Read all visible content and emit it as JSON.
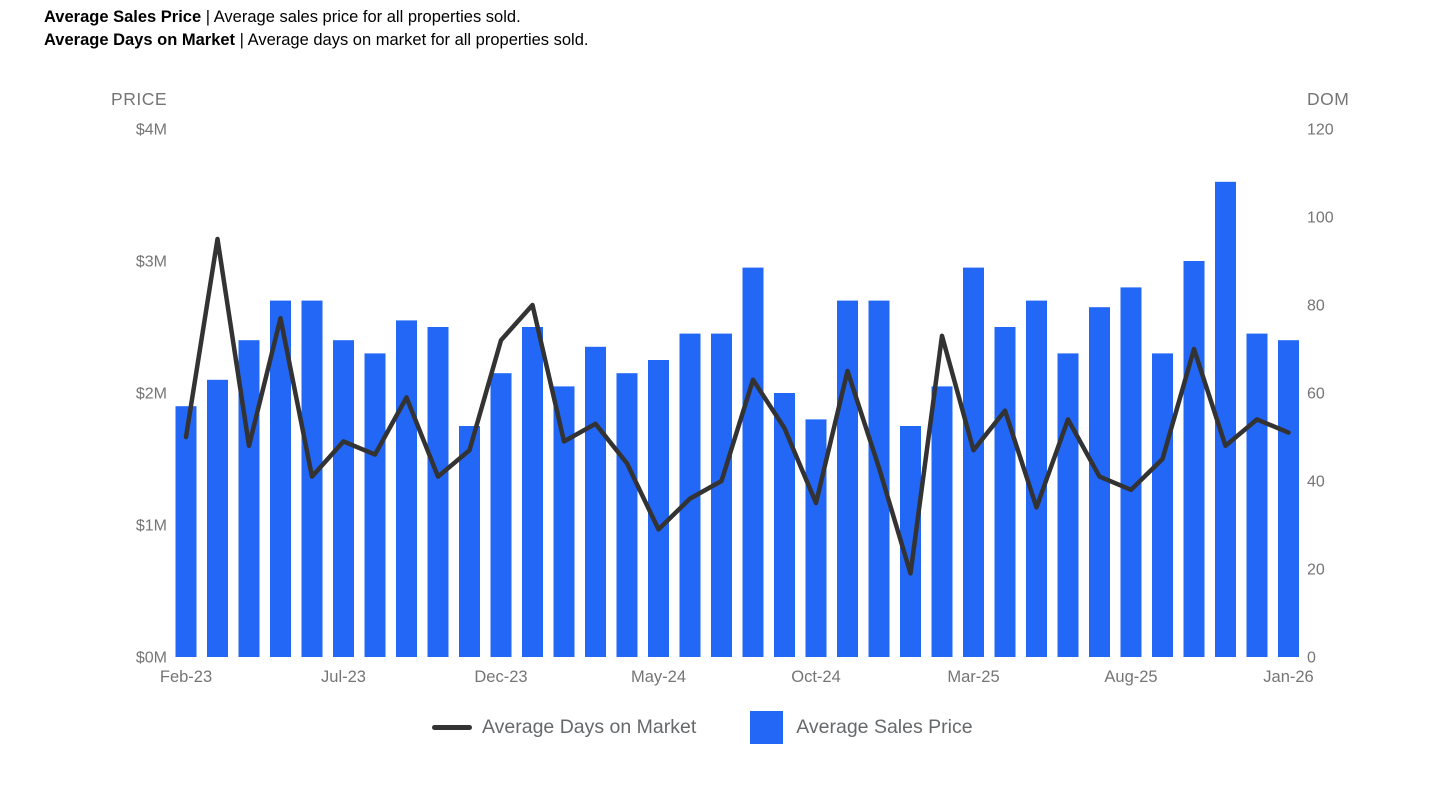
{
  "header": {
    "line1_bold": "Average Sales Price",
    "line1_rest": " | Average sales price for all properties sold.",
    "line2_bold": "Average Days on Market",
    "line2_rest": " | Average days on market for all properties sold."
  },
  "legend": {
    "line_label": "Average Days on Market",
    "bar_label": "Average Sales Price"
  },
  "colors": {
    "bar": "#2267f6",
    "line": "#333333",
    "axis_text": "#757575",
    "title_text": "#000000",
    "legend_text": "#66696c"
  },
  "chart_data": {
    "type": "bar",
    "subtype": "combo-dual-axis (bars = price left axis, line = days-on-market right axis)",
    "grid": false,
    "legend_position": "bottom-center",
    "categories": [
      "Feb-23",
      "Mar-23",
      "Apr-23",
      "May-23",
      "Jun-23",
      "Jul-23",
      "Aug-23",
      "Sep-23",
      "Oct-23",
      "Nov-23",
      "Dec-23",
      "Jan-24",
      "Feb-24",
      "Mar-24",
      "Apr-24",
      "May-24",
      "Jun-24",
      "Jul-24",
      "Aug-24",
      "Sep-24",
      "Oct-24",
      "Nov-24",
      "Dec-24",
      "Jan-25",
      "Feb-25",
      "Mar-25",
      "Apr-25",
      "May-25",
      "Jun-25",
      "Jul-25",
      "Aug-25",
      "Sep-25",
      "Oct-25",
      "Nov-25",
      "Dec-25",
      "Jan-26"
    ],
    "series": [
      {
        "name": "Average Sales Price",
        "type": "bar",
        "axis": "left",
        "unit": "$M",
        "values": [
          1.9,
          2.1,
          2.4,
          2.7,
          2.7,
          2.4,
          2.3,
          2.55,
          2.5,
          1.75,
          2.15,
          2.5,
          2.05,
          2.35,
          2.15,
          2.25,
          2.45,
          2.45,
          2.95,
          2.0,
          1.8,
          2.7,
          2.7,
          1.75,
          2.05,
          2.95,
          2.5,
          2.7,
          2.3,
          2.65,
          2.8,
          2.3,
          3.0,
          3.6,
          2.45,
          2.4
        ]
      },
      {
        "name": "Average Days on Market",
        "type": "line",
        "axis": "right",
        "unit": "days",
        "values": [
          50,
          95,
          48,
          77,
          41,
          49,
          46,
          59,
          41,
          47,
          72,
          80,
          49,
          53,
          44,
          29,
          36,
          40,
          63,
          52,
          35,
          65,
          43,
          19,
          73,
          47,
          56,
          34,
          54,
          41,
          38,
          45,
          70,
          48,
          54,
          51
        ]
      }
    ],
    "left_axis": {
      "title": "PRICE",
      "min": 0,
      "max": 4,
      "ticks": [
        "$0M",
        "$1M",
        "$2M",
        "$3M",
        "$4M"
      ]
    },
    "right_axis": {
      "title": "DOM",
      "min": 0,
      "max": 120,
      "ticks": [
        "0",
        "20",
        "40",
        "60",
        "80",
        "100",
        "120"
      ]
    },
    "x_axis": {
      "tick_every": 5,
      "tick_labels": [
        "Feb-23",
        "Jul-23",
        "Dec-23",
        "May-24",
        "Oct-24",
        "Mar-25",
        "Aug-25",
        "Jan-26"
      ]
    }
  }
}
